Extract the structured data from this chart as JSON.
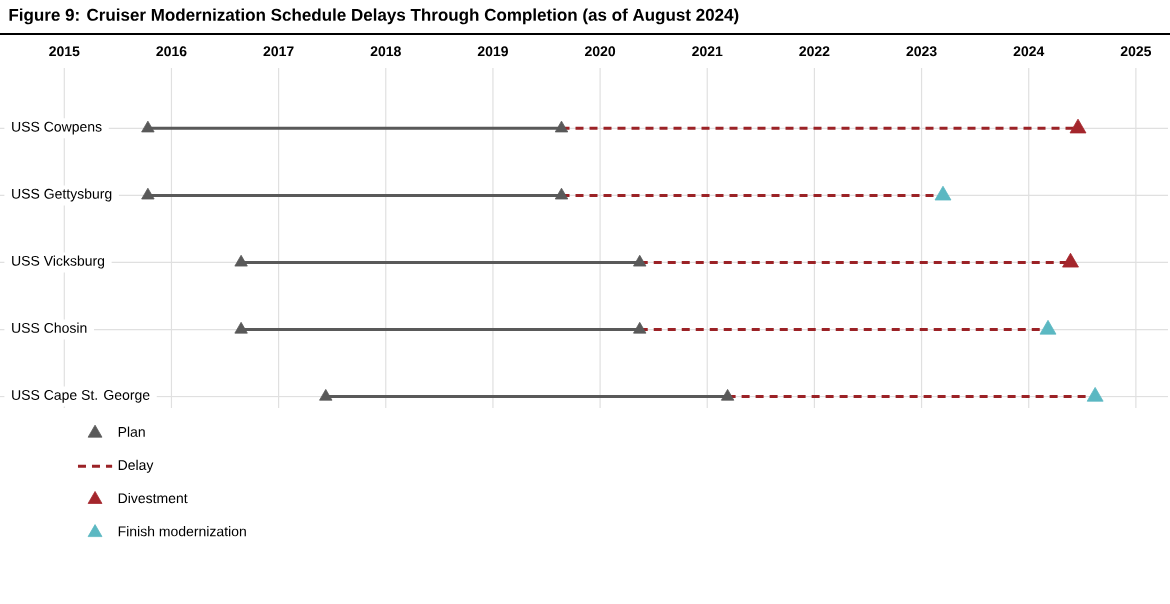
{
  "chart_data": {
    "type": "line",
    "orientation": "horizontal",
    "title": "Figure 9: Cruiser Modernization Schedule Delays Through Completion (as of August 2024)",
    "categories": [
      "USS Cowpens",
      "USS Gettysburg",
      "USS Vicksburg",
      "USS Chosin",
      "USS Cape St. George"
    ],
    "series": [
      {
        "name": "Plan",
        "type": "scatter",
        "marker": "triangle",
        "color": "#595959",
        "x": [
          "USS Cowpens",
          "USS Cowpens",
          "USS Gettysburg",
          "USS Gettysburg",
          "USS Vicksburg",
          "USS Vicksburg",
          "USS Chosin",
          "USS Chosin",
          "USS Cape St. George",
          "USS Cape St. George"
        ],
        "values": [
          2015.78,
          2019.64,
          2015.78,
          2019.64,
          2016.65,
          2020.37,
          2016.65,
          2020.37,
          2017.44,
          2021.19
        ]
      },
      {
        "name": "Delay",
        "color": "#9b2226",
        "line_style": "dashed",
        "x": [
          "USS Cowpens",
          "USS Cowpens"
        ],
        "values": [
          2019.64,
          2024.46
        ]
      },
      {
        "color": "#9b2226",
        "line_style": "dashed",
        "x": [
          "USS Gettysburg",
          "USS Gettysburg"
        ],
        "values": [
          2019.64,
          2023.2
        ]
      },
      {
        "color": "#9b2226",
        "line_style": "dashed",
        "x": [
          "USS Vicksburg",
          "USS Vicksburg"
        ],
        "values": [
          2020.37,
          2024.39
        ]
      },
      {
        "color": "#9b2226",
        "line_style": "dashed",
        "x": [
          "USS Chosin",
          "USS Chosin"
        ],
        "values": [
          2020.37,
          2024.18
        ]
      },
      {
        "color": "#9b2226",
        "line_style": "dashed",
        "x": [
          "USS Cape St. George",
          "USS Cape St. George"
        ],
        "values": [
          2021.19,
          2024.62
        ]
      },
      {
        "color": "#595959",
        "line_style": "solid",
        "x": [
          "USS Cowpens",
          "USS Cowpens"
        ],
        "values": [
          2015.78,
          2019.64
        ]
      },
      {
        "color": "#595959",
        "line_style": "solid",
        "x": [
          "USS Gettysburg",
          "USS Gettysburg"
        ],
        "values": [
          2015.78,
          2019.64
        ]
      },
      {
        "color": "#595959",
        "line_style": "solid",
        "x": [
          "USS Vicksburg",
          "USS Vicksburg"
        ],
        "values": [
          2016.65,
          2020.37
        ]
      },
      {
        "color": "#595959",
        "line_style": "solid",
        "x": [
          "USS Chosin",
          "USS Chosin"
        ],
        "values": [
          2016.65,
          2020.37
        ]
      },
      {
        "color": "#595959",
        "line_style": "solid",
        "x": [
          "USS Cape St. George",
          "USS Cape St. George"
        ],
        "values": [
          2017.44,
          2021.19
        ]
      },
      {
        "name": "Divestment",
        "type": "scatter",
        "marker": "triangle",
        "color": "#a4262c",
        "x": [
          "USS Cowpens",
          "USS Vicksburg"
        ],
        "values": [
          2024.46,
          2024.39
        ]
      },
      {
        "name": "Finish modernization",
        "type": "scatter",
        "marker": "triangle",
        "color": "#5bb8c2",
        "x": [
          "USS Gettysburg",
          "USS Chosin",
          "USS Cape St. George"
        ],
        "values": [
          2023.2,
          2024.18,
          2024.62
        ]
      }
    ],
    "xlim": [
      2014.4,
      2025.3
    ],
    "xticks": [
      2015,
      2016,
      2017,
      2018,
      2019,
      2020,
      2021,
      2022,
      2023,
      2024,
      2025
    ],
    "grid": true,
    "legend": "bottom left"
  }
}
